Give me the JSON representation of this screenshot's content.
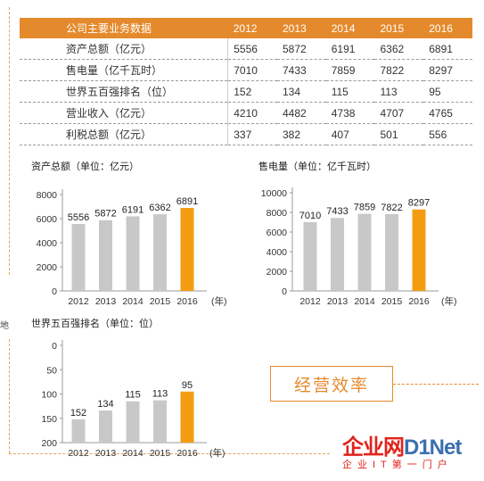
{
  "table": {
    "header": [
      "公司主要业务数据",
      "2012",
      "2013",
      "2014",
      "2015",
      "2016"
    ],
    "rows": [
      {
        "label": "资产总额（亿元）",
        "values": [
          "5556",
          "5872",
          "6191",
          "6362",
          "6891"
        ]
      },
      {
        "label": "售电量（亿千瓦时）",
        "values": [
          "7010",
          "7433",
          "7859",
          "7822",
          "8297"
        ]
      },
      {
        "label": "世界五百强排名（位）",
        "values": [
          "152",
          "134",
          "115",
          "113",
          "95"
        ]
      },
      {
        "label": "营业收入（亿元）",
        "values": [
          "4210",
          "4482",
          "4738",
          "4707",
          "4765"
        ]
      },
      {
        "label": "利税总额（亿元）",
        "values": [
          "337",
          "382",
          "407",
          "501",
          "556"
        ]
      }
    ]
  },
  "chart_data": [
    {
      "type": "bar",
      "title": "资产总额（单位：亿元）",
      "categories": [
        "2012",
        "2013",
        "2014",
        "2015",
        "2016"
      ],
      "x_unit_label": "(年)",
      "values": [
        5556,
        5872,
        6191,
        6362,
        6891
      ],
      "ylim": [
        0,
        8000
      ],
      "yticks": [
        0,
        2000,
        4000,
        6000,
        8000
      ],
      "highlight_index": 4,
      "colors": {
        "bar": "#c8c8c8",
        "highlight": "#f39c12"
      },
      "grid": false
    },
    {
      "type": "bar",
      "title": "售电量（单位：亿千瓦时）",
      "categories": [
        "2012",
        "2013",
        "2014",
        "2015",
        "2016"
      ],
      "x_unit_label": "(年)",
      "values": [
        7010,
        7433,
        7859,
        7822,
        8297
      ],
      "ylim": [
        0,
        10000
      ],
      "yticks": [
        0,
        2000,
        4000,
        6000,
        8000,
        10000
      ],
      "highlight_index": 4,
      "colors": {
        "bar": "#c8c8c8",
        "highlight": "#f39c12"
      },
      "grid": false
    },
    {
      "type": "bar",
      "title": "世界五百强排名（单位：位）",
      "categories": [
        "2012",
        "2013",
        "2014",
        "2015",
        "2016"
      ],
      "x_unit_label": "(年)",
      "values": [
        152,
        134,
        115,
        113,
        95
      ],
      "ylim": [
        0,
        200
      ],
      "y_inverted": true,
      "yticks": [
        0,
        50,
        100,
        150,
        200
      ],
      "highlight_index": 4,
      "colors": {
        "bar": "#c8c8c8",
        "highlight": "#f39c12"
      },
      "grid": false
    }
  ],
  "badge": {
    "text": "经营效率"
  },
  "side_char": "地",
  "watermark": {
    "main_a": "企业网",
    "main_b": "D1Net",
    "sub": "企业IT第一门户"
  }
}
